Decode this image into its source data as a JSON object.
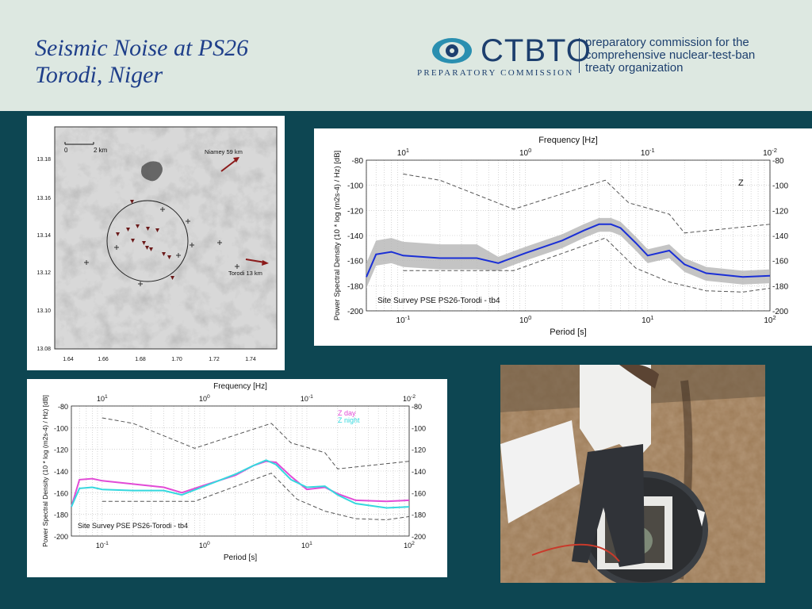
{
  "slide": {
    "title_line1": "Seismic Noise at PS26",
    "title_line2": "Torodi, Niger"
  },
  "logo": {
    "name": "CTBTO",
    "subtitle": "PREPARATORY COMMISSION",
    "tagline_line1": "preparatory commission for the",
    "tagline_line2": "comprehensive nuclear-test-ban",
    "tagline_line3": "treaty organization",
    "color": "#1d3f6e",
    "accent": "#2a8fb0"
  },
  "map": {
    "lat_ticks": [
      "13.18",
      "13.16",
      "13.14",
      "13.12",
      "13.10",
      "13.08"
    ],
    "lon_ticks": [
      "1.64",
      "1.66",
      "1.68",
      "1.70",
      "1.72",
      "1.74"
    ],
    "scale_zero": "0",
    "scale_label": "2 km",
    "label_niamey": "Niamey 59 km",
    "label_torodi": "Torodi 13 km"
  },
  "chart_data": [
    {
      "type": "line",
      "title": "Site Survey PSE PS26-Torodi - tb4",
      "xlabel": "Period [s]",
      "x2label": "Frequency [Hz]",
      "ylabel": "Power Spectral Density (10 * log (m2s-4) / Hz) [dB]",
      "channel_label": "Z",
      "xscale": "log",
      "xlim": [
        0.05,
        100
      ],
      "ylim": [
        -200,
        -80
      ],
      "x_ticks": [
        "10-1",
        "100",
        "101",
        "102"
      ],
      "freq_ticks": [
        "101",
        "100",
        "10-1",
        "10-2"
      ],
      "y_ticks": [
        "-80",
        "-100",
        "-120",
        "-140",
        "-160",
        "-180",
        "-200"
      ],
      "series": [
        {
          "role": "noise_upper_model",
          "color": "#555555",
          "x": [
            0.1,
            0.2,
            0.8,
            4.5,
            7,
            15,
            20,
            100
          ],
          "y": [
            -91,
            -96,
            -119,
            -96,
            -114,
            -123,
            -138,
            -131
          ]
        },
        {
          "role": "noise_lower_model",
          "color": "#555555",
          "x": [
            0.1,
            0.8,
            4.5,
            8,
            15,
            30,
            60,
            100
          ],
          "y": [
            -168,
            -168,
            -142,
            -166,
            -177,
            -184,
            -185,
            -182
          ]
        },
        {
          "role": "median",
          "color": "#1a2fd6",
          "x": [
            0.05,
            0.06,
            0.08,
            0.1,
            0.2,
            0.4,
            0.6,
            1,
            2,
            3,
            4,
            5,
            6,
            8,
            10,
            15,
            20,
            30,
            60,
            100
          ],
          "y": [
            -173,
            -155,
            -153,
            -156,
            -158,
            -158,
            -162,
            -154,
            -144,
            -136,
            -131,
            -131,
            -134,
            -146,
            -156,
            -152,
            -163,
            -170,
            -173,
            -172
          ]
        }
      ]
    },
    {
      "type": "line",
      "title": "Site Survey PSE PS26-Torodi - tb4",
      "xlabel": "Period [s]",
      "x2label": "Frequency [Hz]",
      "ylabel": "Power Spectral Density (10 * log (m2s-4) / Hz) [dB]",
      "xscale": "log",
      "xlim": [
        0.05,
        100
      ],
      "ylim": [
        -200,
        -80
      ],
      "x_ticks": [
        "10-1",
        "100",
        "101",
        "102"
      ],
      "freq_ticks": [
        "101",
        "100",
        "10-1",
        "10-2"
      ],
      "y_ticks": [
        "-80",
        "-100",
        "-120",
        "-140",
        "-160",
        "-180",
        "-200"
      ],
      "series": [
        {
          "name": "Z day",
          "color": "#e24bd6",
          "x": [
            0.05,
            0.06,
            0.08,
            0.1,
            0.2,
            0.4,
            0.6,
            1,
            2,
            3,
            4,
            5,
            7,
            10,
            15,
            20,
            30,
            60,
            100
          ],
          "y": [
            -173,
            -148,
            -147,
            -149,
            -152,
            -155,
            -160,
            -153,
            -144,
            -135,
            -131,
            -132,
            -145,
            -157,
            -155,
            -161,
            -167,
            -168,
            -167
          ]
        },
        {
          "name": "Z night",
          "color": "#35d8de",
          "x": [
            0.05,
            0.06,
            0.08,
            0.1,
            0.2,
            0.4,
            0.6,
            1,
            2,
            3,
            4,
            5,
            7,
            10,
            15,
            20,
            30,
            60,
            100
          ],
          "y": [
            -173,
            -156,
            -155,
            -157,
            -158,
            -158,
            -162,
            -154,
            -143,
            -135,
            -130,
            -134,
            -148,
            -155,
            -154,
            -162,
            -170,
            -174,
            -173
          ]
        },
        {
          "role": "noise_upper_model",
          "color": "#555555",
          "x": [
            0.1,
            0.2,
            0.8,
            4.5,
            7,
            15,
            20,
            100
          ],
          "y": [
            -91,
            -96,
            -119,
            -96,
            -114,
            -123,
            -138,
            -131
          ]
        },
        {
          "role": "noise_lower_model",
          "color": "#555555",
          "x": [
            0.1,
            0.8,
            4.5,
            8,
            15,
            30,
            60,
            100
          ],
          "y": [
            -168,
            -168,
            -142,
            -166,
            -177,
            -184,
            -185,
            -182
          ]
        }
      ]
    }
  ]
}
